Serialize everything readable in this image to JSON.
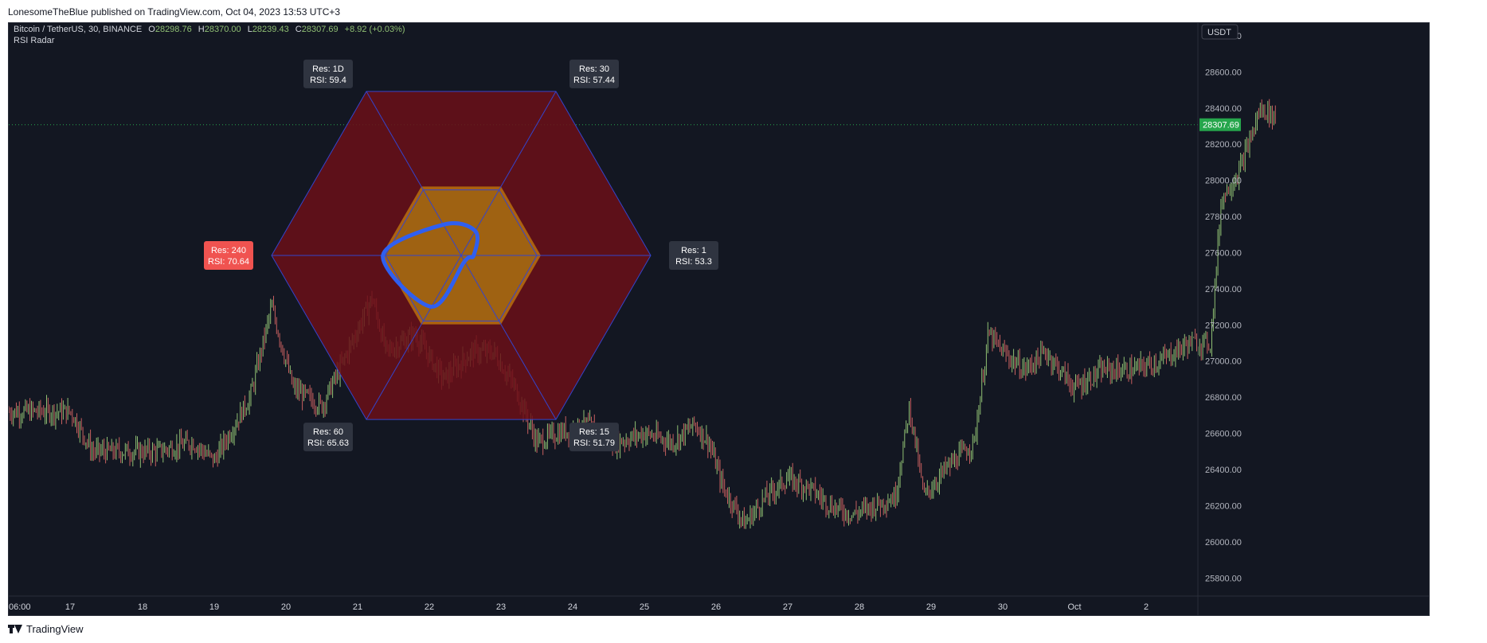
{
  "header": {
    "published": "LonesomeTheBlue published on TradingView.com, Oct 04, 2023 13:53 UTC+3"
  },
  "footer": {
    "brand": "TradingView"
  },
  "legend": {
    "symbol": "Bitcoin / TetherUS, 30, BINANCE",
    "o_label": "O",
    "o_value": "28298.76",
    "h_label": "H",
    "h_value": "28370.00",
    "l_label": "L",
    "l_value": "28239.43",
    "c_label": "C",
    "c_value": "28307.69",
    "change": "+8.92 (+0.03%)",
    "indicator": "RSI Radar"
  },
  "currency": "USDT",
  "colors": {
    "bg": "#131722",
    "up": "#8fbf73",
    "down": "#c65f5f",
    "ring": "#6b0f17",
    "inner": "#b8700f",
    "curve": "#2f5ff0",
    "grid": "#3444cc",
    "badge": "#2f3440",
    "badge_max": "#f05350",
    "last_price": "#26a64c"
  },
  "chart_data": {
    "type": "candlestick",
    "timeframe": "30",
    "y_ticks": [
      25800,
      26000,
      26200,
      26400,
      26600,
      26800,
      27000,
      27200,
      27400,
      27600,
      27800,
      28000,
      28200,
      28400,
      28600,
      28800
    ],
    "y_tick_labels": [
      "25800.00",
      "26000.00",
      "26200.00",
      "26400.00",
      "26600.00",
      "26800.00",
      "27000.00",
      "27200.00",
      "27400.00",
      "27600.00",
      "27800.00",
      "28000.00",
      "28200.00",
      "28400.00",
      "28600.00",
      "28800.00"
    ],
    "ylim": [
      25700,
      28870
    ],
    "x_ticks": [
      "06:00",
      "17",
      "18",
      "19",
      "20",
      "21",
      "22",
      "23",
      "24",
      "25",
      "26",
      "27",
      "28",
      "29",
      "30",
      "Oct",
      "2"
    ],
    "last_price": 28307.69,
    "last_price_label": "28307.69",
    "price_path": [
      [
        0,
        26720
      ],
      [
        0.3,
        26500
      ],
      [
        1.2,
        26500
      ],
      [
        1.7,
        26550
      ],
      [
        2.0,
        26450
      ],
      [
        2.5,
        26800
      ],
      [
        2.8,
        27300
      ],
      [
        3.1,
        26850
      ],
      [
        3.5,
        26750
      ],
      [
        3.8,
        27000
      ],
      [
        4.2,
        27350
      ],
      [
        4.4,
        27050
      ],
      [
        4.8,
        27150
      ],
      [
        5.2,
        26900
      ],
      [
        5.6,
        27050
      ],
      [
        5.9,
        27050
      ],
      [
        6.2,
        26850
      ],
      [
        6.5,
        26550
      ],
      [
        6.8,
        26600
      ],
      [
        7.2,
        26650
      ],
      [
        7.6,
        26550
      ],
      [
        8.0,
        26600
      ],
      [
        8.4,
        26550
      ],
      [
        8.7,
        26650
      ],
      [
        8.9,
        26550
      ],
      [
        9.1,
        26300
      ],
      [
        9.4,
        26100
      ],
      [
        9.7,
        26250
      ],
      [
        10.0,
        26350
      ],
      [
        10.3,
        26300
      ],
      [
        10.6,
        26200
      ],
      [
        10.9,
        26150
      ],
      [
        11.2,
        26200
      ],
      [
        11.5,
        26250
      ],
      [
        11.7,
        26750
      ],
      [
        11.9,
        26250
      ],
      [
        12.2,
        26400
      ],
      [
        12.6,
        26550
      ],
      [
        12.8,
        27150
      ],
      [
        13.0,
        27050
      ],
      [
        13.3,
        26950
      ],
      [
        13.6,
        27050
      ],
      [
        14.0,
        26850
      ],
      [
        14.4,
        26950
      ],
      [
        14.8,
        26950
      ],
      [
        15.2,
        27000
      ],
      [
        15.6,
        27100
      ],
      [
        15.9,
        27100
      ],
      [
        16.05,
        27900
      ],
      [
        16.3,
        28050
      ],
      [
        16.6,
        28400
      ],
      [
        16.8,
        28350
      ]
    ],
    "radar": {
      "ring_outer": 100,
      "ring_inner": 70,
      "center": 50,
      "inner_zone": 30,
      "points": [
        {
          "res": "1",
          "rsi": 53.3,
          "res_text": "Res: 1",
          "rsi_text": "RSI: 53.3",
          "highlight": false
        },
        {
          "res": "15",
          "rsi": 51.79,
          "res_text": "Res: 15",
          "rsi_text": "RSI: 51.79",
          "highlight": false
        },
        {
          "res": "60",
          "rsi": 65.63,
          "res_text": "Res: 60",
          "rsi_text": "RSI: 65.63",
          "highlight": false
        },
        {
          "res": "240",
          "rsi": 70.64,
          "res_text": "Res: 240",
          "rsi_text": "RSI: 70.64",
          "highlight": true
        },
        {
          "res": "1D",
          "rsi": 59.4,
          "res_text": "Res: 1D",
          "rsi_text": "RSI: 59.4",
          "highlight": false
        },
        {
          "res": "30",
          "rsi": 57.44,
          "res_text": "Res: 30",
          "rsi_text": "RSI: 57.44",
          "highlight": false
        }
      ]
    }
  }
}
